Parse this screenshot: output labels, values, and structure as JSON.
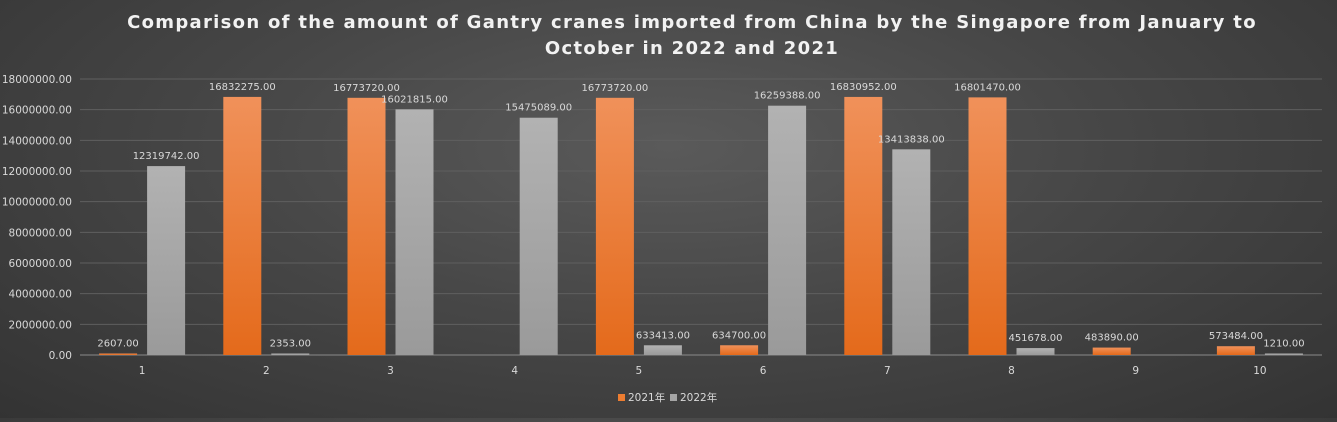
{
  "chart_data": {
    "type": "bar",
    "title_lines": [
      "Comparison of the amount of Gantry cranes imported from China by the Singapore from January to",
      "October in 2022 and 2021"
    ],
    "categories": [
      "1",
      "2",
      "3",
      "4",
      "5",
      "6",
      "7",
      "8",
      "9",
      "10"
    ],
    "series": [
      {
        "name": "2021年",
        "color": "#ED7D31",
        "values": [
          2607,
          16832275,
          16773720,
          null,
          16773720,
          634700,
          16830952,
          16801470,
          483890,
          573484
        ],
        "labels": [
          "2607.00",
          "16832275.00",
          "16773720.00",
          "",
          "16773720.00",
          "634700.00",
          "16830952.00",
          "16801470.00",
          "483890.00",
          "573484.00"
        ]
      },
      {
        "name": "2022年",
        "color": "#A5A5A5",
        "values": [
          12319742,
          2353,
          16021815,
          15475089,
          633413,
          16259388,
          13413838,
          451678,
          null,
          1210
        ],
        "labels": [
          "12319742.00",
          "2353.00",
          "16021815.00",
          "15475089.00",
          "633413.00",
          "16259388.00",
          "13413838.00",
          "451678.00",
          "",
          "1210.00"
        ]
      }
    ],
    "ylim": [
      0,
      18000000
    ],
    "yticks": [
      0,
      2000000,
      4000000,
      6000000,
      8000000,
      10000000,
      12000000,
      14000000,
      16000000,
      18000000
    ],
    "ytick_labels": [
      "0.00",
      "2000000.00",
      "4000000.00",
      "6000000.00",
      "8000000.00",
      "10000000.00",
      "12000000.00",
      "14000000.00",
      "16000000.00",
      "18000000.00"
    ],
    "grid": true,
    "legend_position": "bottom"
  }
}
